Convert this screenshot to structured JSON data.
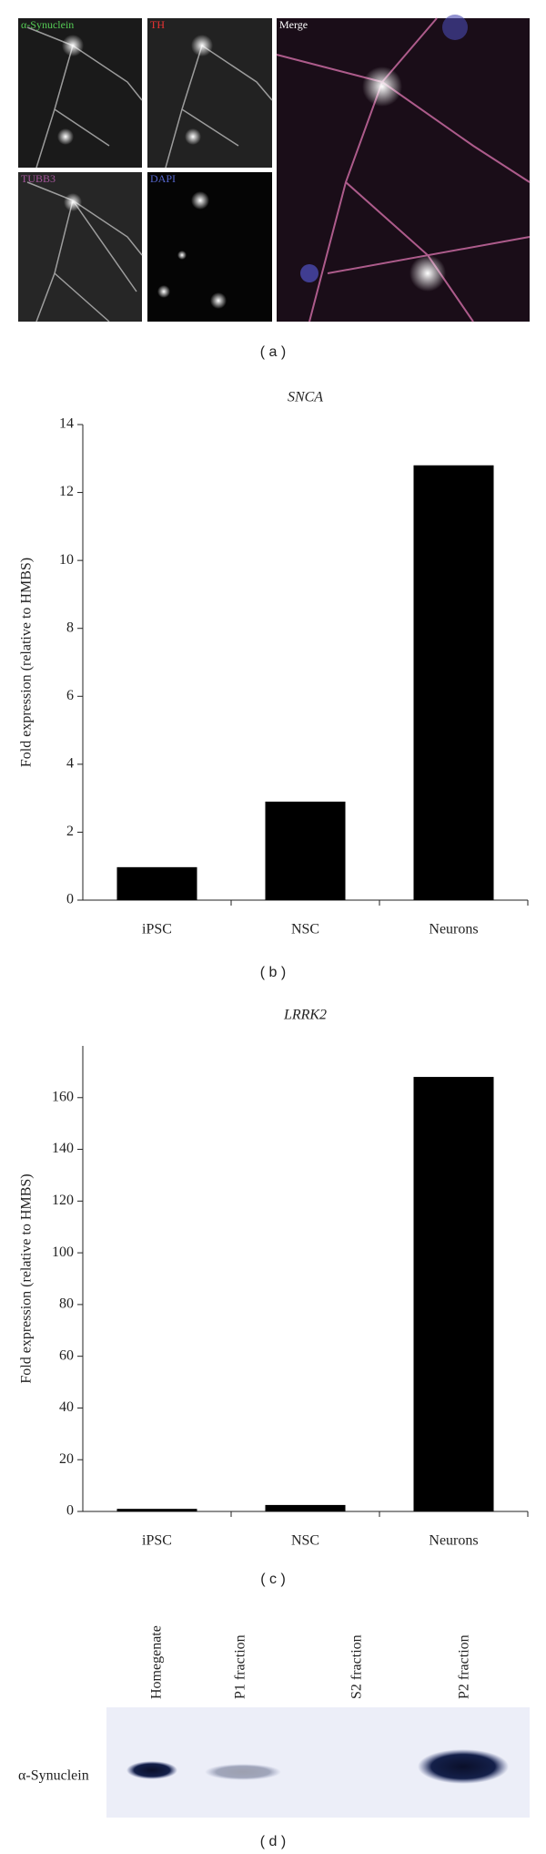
{
  "panel_a": {
    "labels": [
      "α-Synuclein",
      "TH",
      "Merge",
      "TUBB3",
      "DAPI"
    ],
    "caption": "( a )"
  },
  "chart_data": [
    {
      "type": "bar",
      "title": "SNCA",
      "ylabel": "Fold expression (relative to HMBS)",
      "categories": [
        "iPSC",
        "NSC",
        "Neurons"
      ],
      "values": [
        0.97,
        2.9,
        12.8
      ],
      "color": "#000000",
      "ylim": [
        0,
        14
      ],
      "yticks": [
        0,
        2,
        4,
        6,
        8,
        10,
        12,
        14
      ],
      "caption": "( b )"
    },
    {
      "type": "bar",
      "title": "LRRK2",
      "ylabel": "Fold expression (relative to HMBS)",
      "categories": [
        "iPSC",
        "NSC",
        "Neurons"
      ],
      "values": [
        1,
        2.5,
        168
      ],
      "color": "#000000",
      "ylim": [
        0,
        180
      ],
      "yticks": [
        0,
        20,
        40,
        60,
        80,
        100,
        120,
        140,
        160
      ],
      "caption": "( c )"
    }
  ],
  "panel_d": {
    "lanes": [
      "Homegenate",
      "P1 fraction",
      "S2 fraction",
      "P2 fraction"
    ],
    "protein": "α-Synuclein",
    "caption": "( d )"
  }
}
